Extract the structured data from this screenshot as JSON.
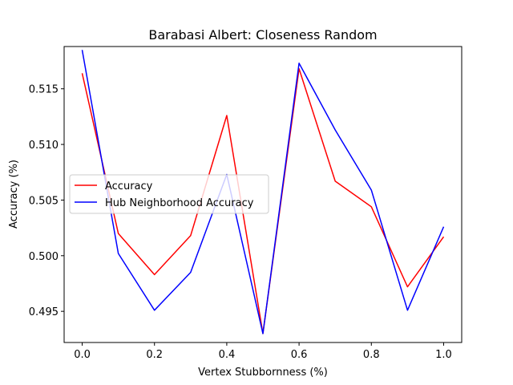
{
  "chart_data": {
    "type": "line",
    "title": "Barabasi Albert: Closeness Random",
    "xlabel": "Vertex Stubbornness (%)",
    "ylabel": "Accuracy (%)",
    "xlim": [
      -0.05,
      1.05
    ],
    "ylim": [
      0.4922,
      0.5188
    ],
    "xticks": [
      0.0,
      0.2,
      0.4,
      0.6,
      0.8,
      1.0
    ],
    "xtick_labels": [
      "0.0",
      "0.2",
      "0.4",
      "0.6",
      "0.8",
      "1.0"
    ],
    "yticks": [
      0.495,
      0.5,
      0.505,
      0.51,
      0.515
    ],
    "ytick_labels": [
      "0.495",
      "0.500",
      "0.505",
      "0.510",
      "0.515"
    ],
    "grid": false,
    "legend_position": "center-left",
    "x": [
      0.0,
      0.1,
      0.2,
      0.3,
      0.4,
      0.5,
      0.6,
      0.7,
      0.8,
      0.9,
      1.0
    ],
    "series": [
      {
        "name": "Accuracy",
        "color": "#ff0000",
        "values": [
          0.5164,
          0.502,
          0.4983,
          0.5018,
          0.5126,
          0.493,
          0.5168,
          0.5067,
          0.5044,
          0.4972,
          0.5017
        ]
      },
      {
        "name": "Hub Neighborhood Accuracy",
        "color": "#0000ff",
        "values": [
          0.5185,
          0.5002,
          0.4951,
          0.4985,
          0.5073,
          0.493,
          0.5173,
          0.5113,
          0.5059,
          0.4951,
          0.5026
        ]
      }
    ]
  }
}
